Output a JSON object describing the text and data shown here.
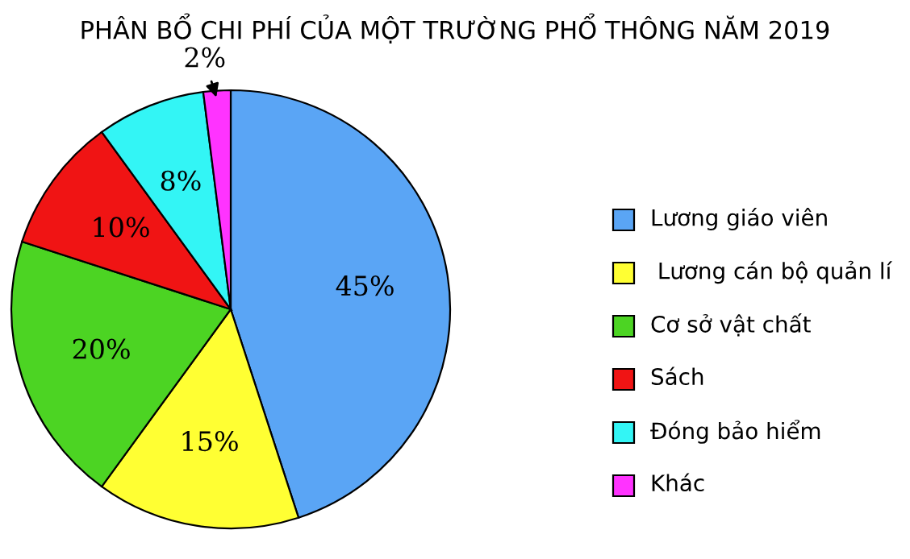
{
  "chart_data": {
    "type": "pie",
    "title": "PHÂN BỔ CHI PHÍ CỦA MỘT TRƯỜNG PHỔ THÔNG NĂM 2019",
    "categories": [
      "Lương giáo viên",
      " Lương cán bộ quản lí",
      "Cơ sở vật chất",
      "Sách",
      "Đóng bảo hiểm",
      "Khác"
    ],
    "values": [
      45,
      15,
      20,
      10,
      8,
      2
    ],
    "colors": [
      "#5aa5f5",
      "#ffff33",
      "#4cd423",
      "#f01414",
      "#33f5f5",
      "#ff33ff"
    ],
    "value_labels": [
      "45%",
      "15%",
      "20%",
      "10%",
      "8%",
      "2%"
    ],
    "legend": "right"
  }
}
